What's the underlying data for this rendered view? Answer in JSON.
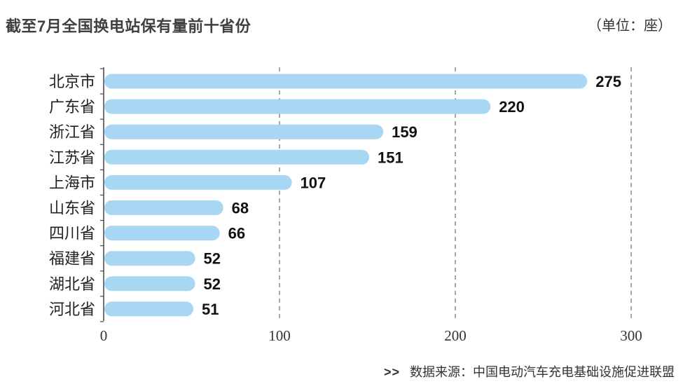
{
  "header": {
    "title": "截至7月全国换电站保有量前十省份",
    "unit": "（单位：座）"
  },
  "footer": {
    "arrows": ">>",
    "source": "数据来源：中国电动汽车充电基础设施促进联盟"
  },
  "colors": {
    "bar": "#a8d7f4",
    "grid": "#777777",
    "axis": "#444444"
  },
  "chart_data": {
    "type": "bar",
    "orientation": "horizontal",
    "title": "截至7月全国换电站保有量前十省份",
    "categories": [
      "北京市",
      "广东省",
      "浙江省",
      "江苏省",
      "上海市",
      "山东省",
      "四川省",
      "福建省",
      "湖北省",
      "河北省"
    ],
    "values": [
      275,
      220,
      159,
      151,
      107,
      68,
      66,
      52,
      52,
      51
    ],
    "value_labels": [
      "275",
      "220",
      "159",
      "151",
      "107",
      "68",
      "66",
      "52",
      "52",
      "51"
    ],
    "xlim": [
      0,
      300
    ],
    "xticks": [
      0,
      100,
      200,
      300
    ],
    "xtick_labels": [
      "0",
      "100",
      "200",
      "300"
    ],
    "grid": "vertical-dashed"
  }
}
